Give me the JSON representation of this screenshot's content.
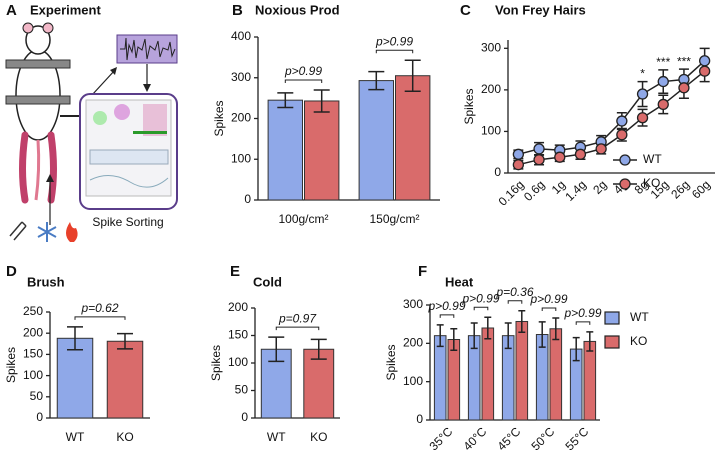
{
  "diagram": {
    "panel": "A",
    "title": "Experiment",
    "caption": "Spike Sorting"
  },
  "chart_data": [
    {
      "type": "bar",
      "panel": "B",
      "title": "Noxious Prod",
      "ylabel": "Spikes",
      "categories": [
        "100g/cm²",
        "150g/cm²"
      ],
      "series": [
        {
          "color": "#8fa8e8",
          "values": [
            245,
            293
          ],
          "errors": [
            18,
            22
          ]
        },
        {
          "color": "#d96b6b",
          "values": [
            243,
            305
          ],
          "errors": [
            27,
            38
          ]
        }
      ],
      "annotations": [
        "p>0.99",
        "p>0.99"
      ],
      "ylim": [
        0,
        400
      ],
      "yticks": [
        0,
        100,
        200,
        300,
        400
      ]
    },
    {
      "type": "line",
      "panel": "C",
      "title": "Von Frey Hairs",
      "ylabel": "Spikes",
      "categories": [
        "0.16g",
        "0.6g",
        "1g",
        "1.4g",
        "2g",
        "4g",
        "8g",
        "15g",
        "26g",
        "60g"
      ],
      "series": [
        {
          "name": "WT",
          "color": "#8fa8e8",
          "values": [
            45,
            58,
            55,
            62,
            75,
            125,
            190,
            220,
            225,
            270
          ],
          "errors": [
            10,
            15,
            12,
            15,
            15,
            20,
            30,
            28,
            25,
            30
          ]
        },
        {
          "name": "KO",
          "color": "#d96b6b",
          "values": [
            20,
            32,
            38,
            45,
            58,
            92,
            133,
            165,
            205,
            245
          ],
          "errors": [
            10,
            12,
            10,
            12,
            12,
            15,
            20,
            22,
            25,
            25
          ]
        }
      ],
      "significance": [
        null,
        null,
        null,
        null,
        null,
        null,
        "*",
        "***",
        "***",
        null
      ],
      "legend": "lower right",
      "ylim": [
        0,
        320
      ],
      "yticks": [
        0,
        100,
        200,
        300
      ]
    },
    {
      "type": "bar",
      "panel": "D",
      "title": "Brush",
      "ylabel": "Spikes",
      "categories": [
        "WT",
        "KO"
      ],
      "values": [
        188,
        181
      ],
      "errors": [
        27,
        18
      ],
      "colors": [
        "#8fa8e8",
        "#d96b6b"
      ],
      "annotations": [
        "p=0.62"
      ],
      "ylim": [
        0,
        250
      ],
      "yticks": [
        0,
        50,
        100,
        150,
        200,
        250
      ]
    },
    {
      "type": "bar",
      "panel": "E",
      "title": "Cold",
      "ylabel": "Spikes",
      "categories": [
        "WT",
        "KO"
      ],
      "values": [
        125,
        125
      ],
      "errors": [
        22,
        18
      ],
      "colors": [
        "#8fa8e8",
        "#d96b6b"
      ],
      "annotations": [
        "p=0.97"
      ],
      "ylim": [
        0,
        200
      ],
      "yticks": [
        0,
        50,
        100,
        150,
        200
      ]
    },
    {
      "type": "bar",
      "panel": "F",
      "title": "Heat",
      "ylabel": "Spikes",
      "categories": [
        "35°C",
        "40°C",
        "45°C",
        "50°C",
        "55°C"
      ],
      "series": [
        {
          "name": "WT",
          "color": "#8fa8e8",
          "values": [
            220,
            220,
            220,
            223,
            185
          ],
          "errors": [
            28,
            33,
            33,
            33,
            30
          ]
        },
        {
          "name": "KO",
          "color": "#d96b6b",
          "values": [
            210,
            240,
            257,
            238,
            205
          ],
          "errors": [
            28,
            28,
            28,
            28,
            25
          ]
        }
      ],
      "annotations": [
        "p>0.99",
        "p>0.99",
        "p=0.36",
        "p>0.99",
        "p>0.99"
      ],
      "legend": "upper right",
      "ylim": [
        0,
        300
      ],
      "yticks": [
        0,
        100,
        200,
        300
      ]
    }
  ]
}
